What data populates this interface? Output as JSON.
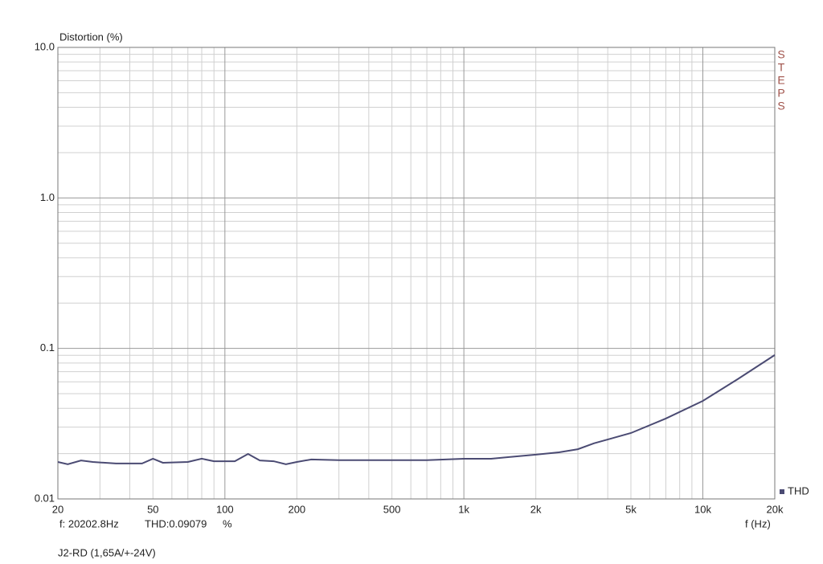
{
  "chart_data": {
    "type": "line",
    "y_label": "Distortion (%)",
    "x_label": "f (Hz)",
    "brand": "STEPS",
    "readout": {
      "frequency": "f: 20202.8Hz",
      "value": "THD:0.09079",
      "unit": "%"
    },
    "footer": "J2-RD (1,65A/+-24V)",
    "x_log": true,
    "y_log": true,
    "grid": true,
    "legend_position": "bottom-right",
    "xlim": [
      20,
      20000
    ],
    "ylim": [
      0.01,
      10
    ],
    "xticks": [
      20,
      50,
      100,
      200,
      500,
      {
        "value": 1000,
        "label": "1k"
      },
      {
        "value": 2000,
        "label": "2k"
      },
      {
        "value": 5000,
        "label": "5k"
      },
      {
        "value": 10000,
        "label": "10k"
      },
      {
        "value": 20000,
        "label": "20k"
      }
    ],
    "yticks": [
      0.01,
      0.1,
      {
        "value": 1,
        "label": "1.0"
      },
      {
        "value": 10,
        "label": "10.0"
      }
    ],
    "xminorticks": [
      30,
      40,
      60,
      70,
      80,
      90,
      300,
      400,
      600,
      700,
      800,
      900,
      3000,
      4000,
      6000,
      7000,
      8000,
      9000
    ],
    "yminorticks": [
      0.02,
      0.03,
      0.04,
      0.05,
      0.06,
      0.07,
      0.08,
      0.09,
      0.2,
      0.3,
      0.4,
      0.5,
      0.6,
      0.7,
      0.8,
      0.9,
      2,
      3,
      4,
      5,
      6,
      7,
      8,
      9
    ],
    "x": [
      20,
      22,
      25,
      28,
      35,
      45,
      50,
      55,
      70,
      80,
      90,
      110,
      125,
      140,
      160,
      180,
      200,
      230,
      300,
      500,
      700,
      1000,
      1300,
      2000,
      2500,
      3000,
      3500,
      5000,
      7000,
      10000,
      14000,
      20000
    ],
    "series": [
      {
        "name": "THD",
        "color": "#4b4b73",
        "values": [
          0.0176,
          0.017,
          0.018,
          0.0176,
          0.0172,
          0.0172,
          0.0185,
          0.0174,
          0.0176,
          0.0185,
          0.0178,
          0.0178,
          0.0199,
          0.018,
          0.0178,
          0.017,
          0.0176,
          0.0183,
          0.0181,
          0.0181,
          0.0181,
          0.0185,
          0.0185,
          0.0197,
          0.0204,
          0.0214,
          0.0234,
          0.0274,
          0.0342,
          0.0448,
          0.0625,
          0.0904
        ]
      }
    ]
  }
}
